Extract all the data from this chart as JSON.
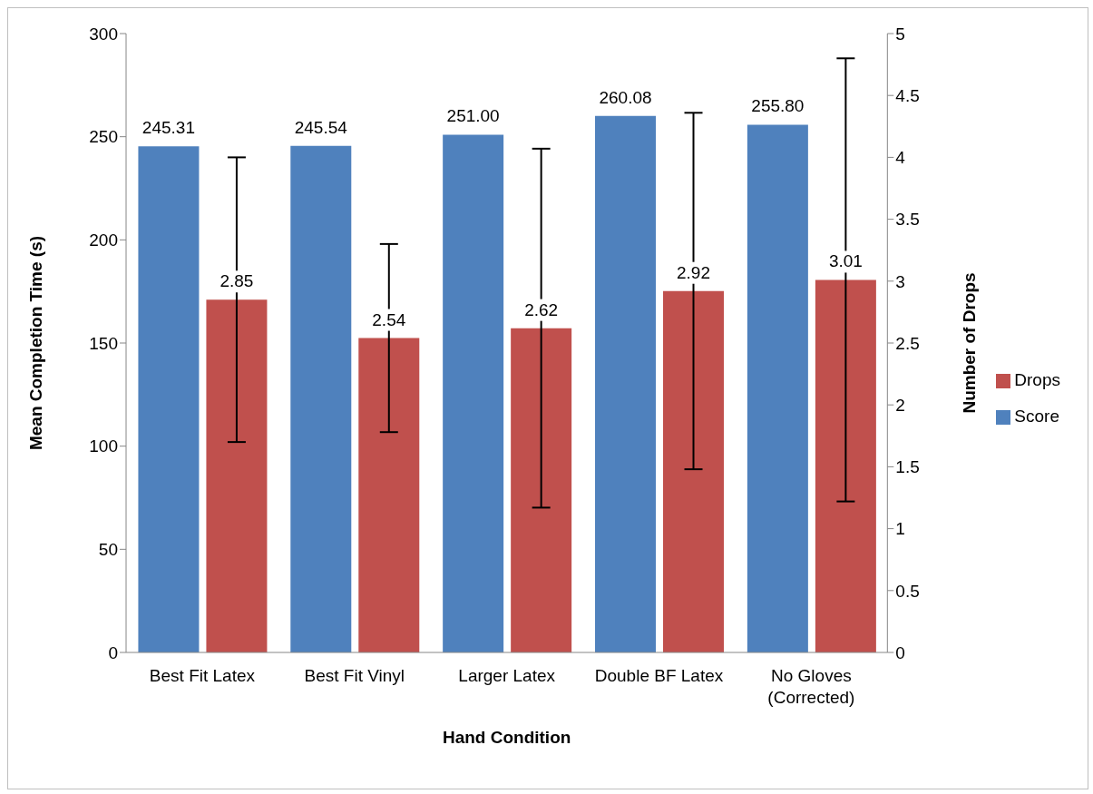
{
  "chart_data": {
    "type": "bar",
    "xlabel": "Hand Condition",
    "ylabel": "Mean Completion Time (s)",
    "y2label": "Number of Drops",
    "categories": [
      "Best Fit Latex",
      "Best Fit Vinyl",
      "Larger Latex",
      "Double BF Latex",
      "No Gloves (Corrected)"
    ],
    "series": [
      {
        "name": "Score",
        "color": "#4f81bd",
        "values": [
          245.31,
          245.54,
          251.0,
          260.08,
          255.8
        ],
        "value_labels": [
          "245.31",
          "245.54",
          "251.00",
          "260.08",
          "255.80"
        ]
      },
      {
        "name": "Drops",
        "color": "#c0504d",
        "axis": "y2",
        "values": [
          2.85,
          2.54,
          2.62,
          2.92,
          3.01
        ],
        "value_labels": [
          "2.85",
          "2.54",
          "2.62",
          "2.92",
          "3.01"
        ],
        "errors": [
          1.15,
          0.76,
          1.45,
          1.44,
          1.79
        ]
      }
    ],
    "ylim": [
      0,
      300
    ],
    "yticks": [
      0,
      50,
      100,
      150,
      200,
      250,
      300
    ],
    "y2lim": [
      0,
      5
    ],
    "y2ticks": [
      0,
      0.5,
      1,
      1.5,
      2,
      2.5,
      3,
      3.5,
      4,
      4.5,
      5
    ],
    "grid": false,
    "legend": "right"
  }
}
